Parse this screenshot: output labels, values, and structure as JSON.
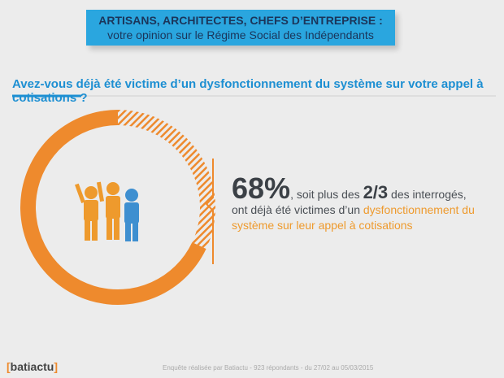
{
  "header": {
    "line1": "ARTISANS, ARCHITECTES, CHEFS D’ENTREPRISE :",
    "line2": "votre opinion sur le Régime Social des Indépendants"
  },
  "question": "Avez-vous déjà été victime d’un dysfonctionnement du système sur votre appel à cotisations ?",
  "result": {
    "value": 68,
    "value_label": "68%",
    "text1": ", soit plus des ",
    "fraction": "2/3",
    "text2": " des interrogés, ont déjà été victimes d’un ",
    "highlight": "dysfonctionnement du système sur leur appel à cotisations"
  },
  "footer": {
    "brand": "batiactu",
    "source": "Enquête réalisée par Batiactu - 923 répondants - du 27/02 au 05/03/2015"
  }
}
